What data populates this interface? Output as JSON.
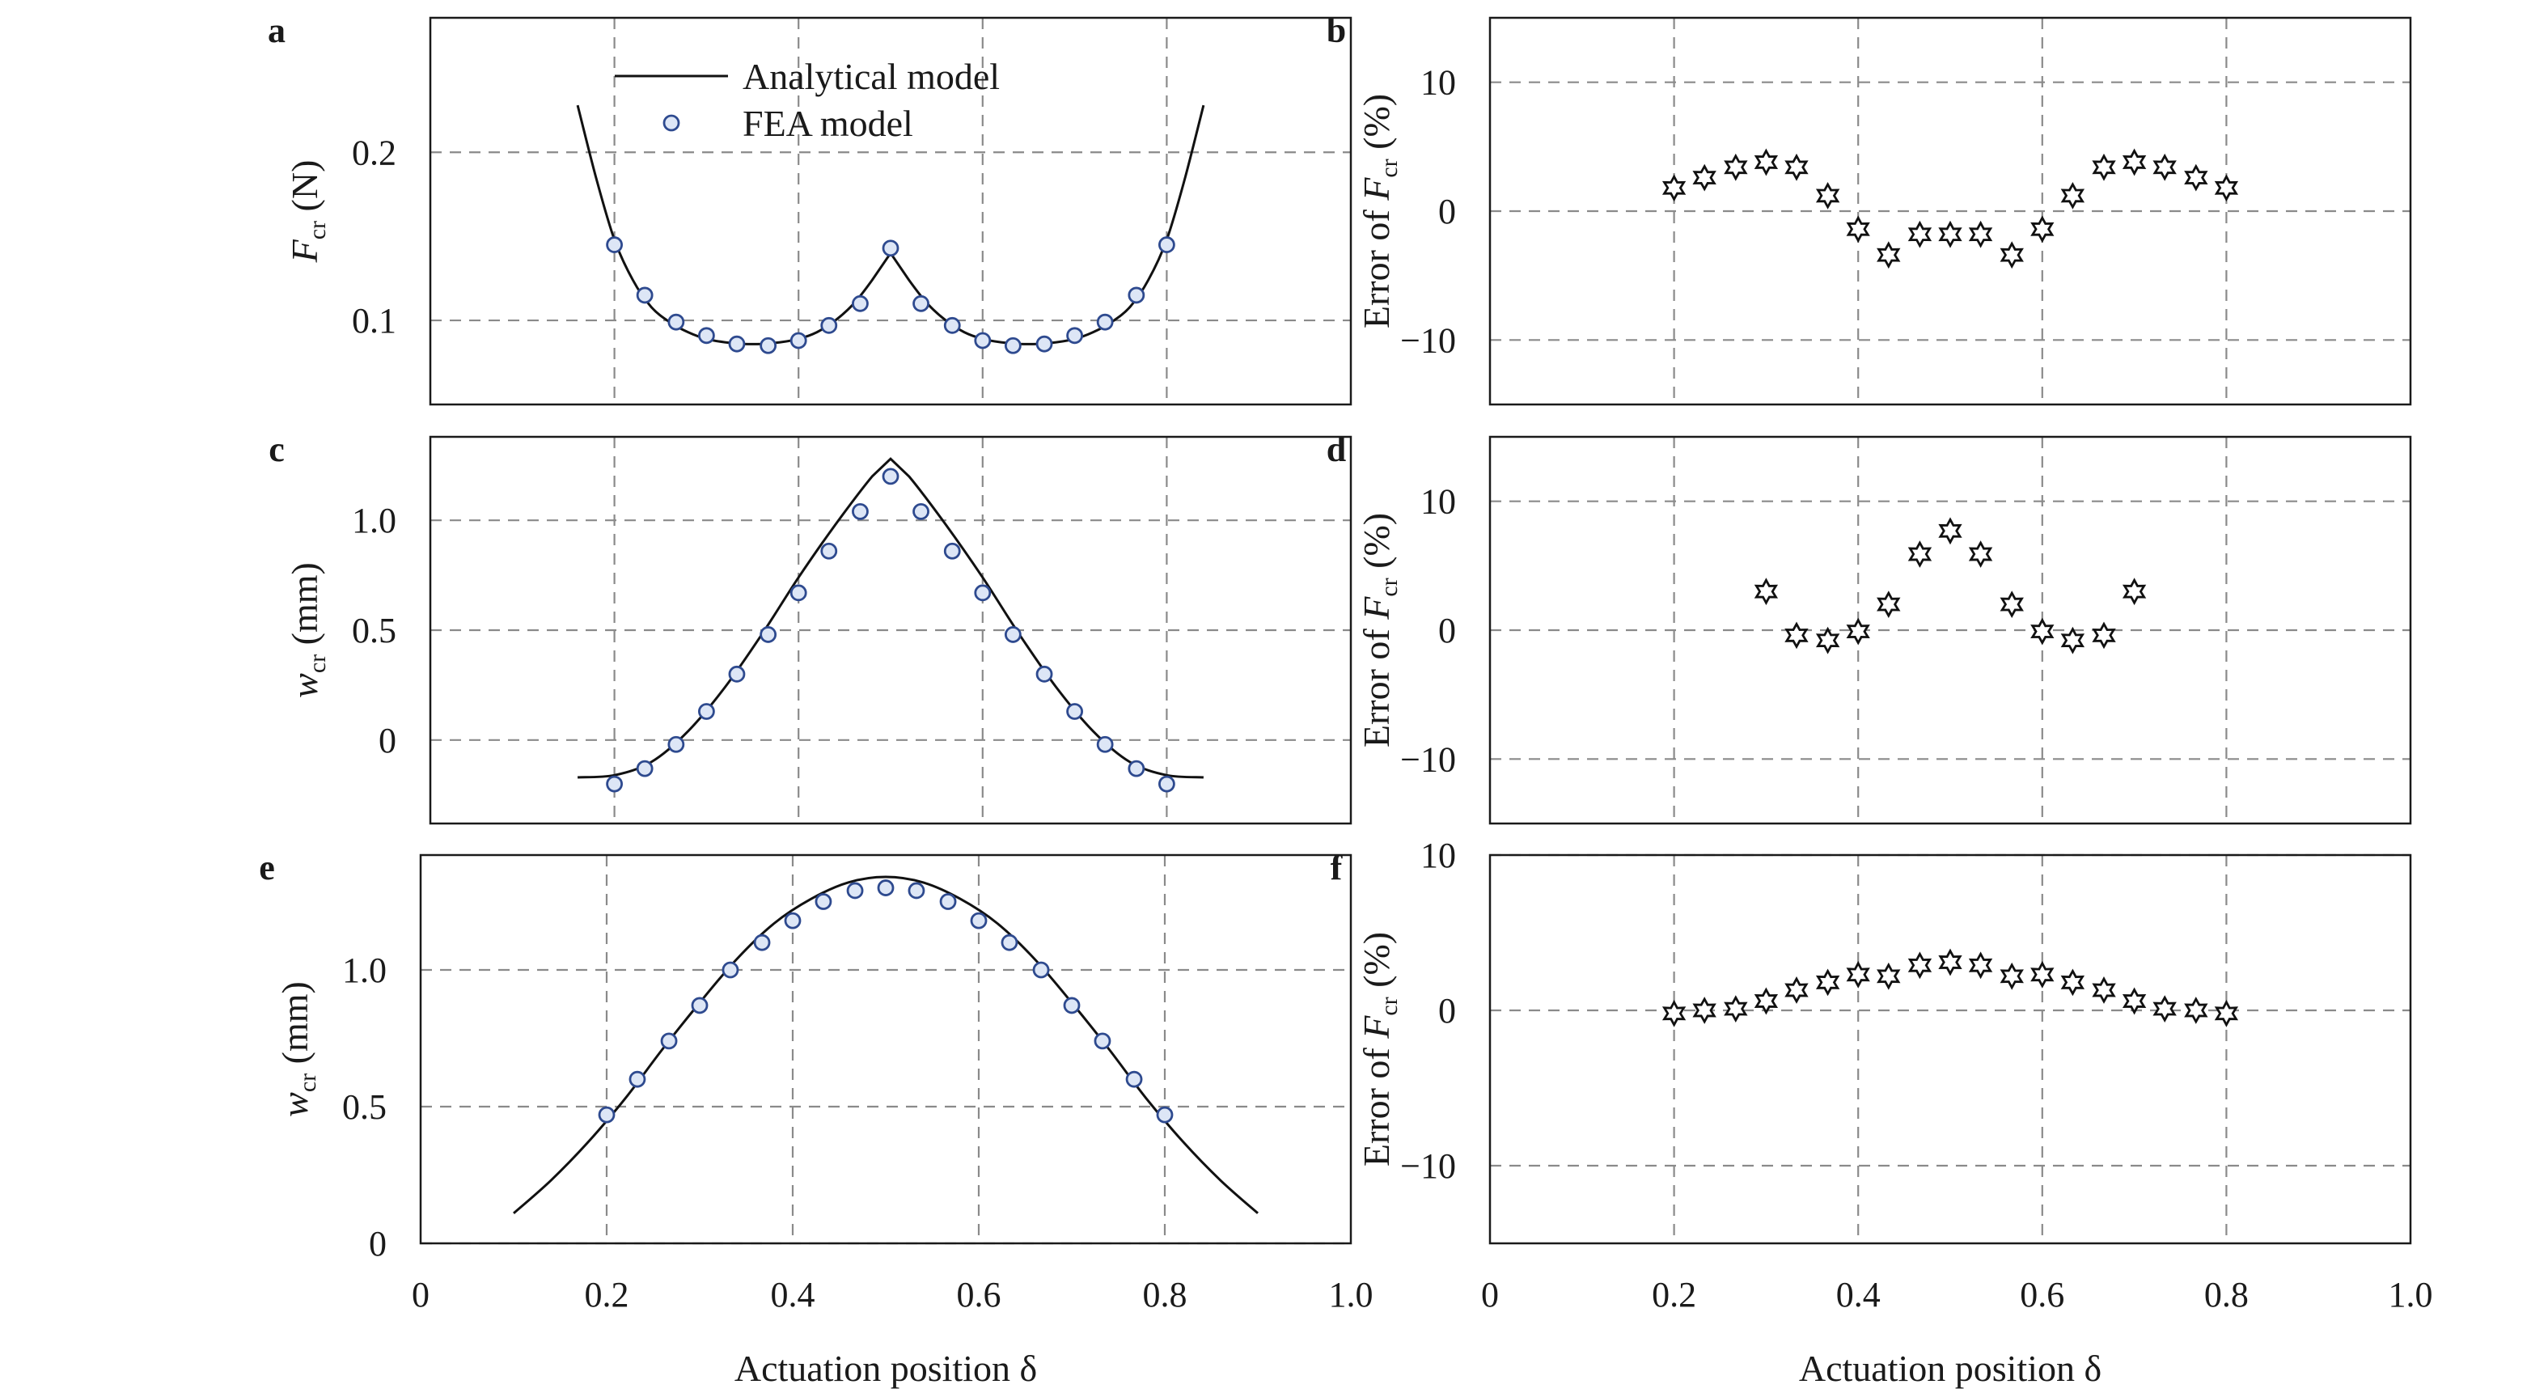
{
  "chart_data": [
    {
      "panel": "a",
      "type": "line",
      "xlim": [
        0,
        1.0
      ],
      "ylim": [
        0.05,
        0.28
      ],
      "xticks": [
        0.2,
        0.4,
        0.6,
        0.8
      ],
      "yticks": [
        0.1,
        0.2
      ],
      "ytick_labels": [
        "0.1",
        "0.2"
      ],
      "ylabel_main": "F",
      "ylabel_sub": "cr",
      "ylabel_unit": "(N)",
      "legend": {
        "position": "top-center",
        "line_label": "Analytical model",
        "marker_label": "FEA model"
      },
      "series": [
        {
          "kind": "line",
          "x": [
            0.16,
            0.18,
            0.2,
            0.22,
            0.24,
            0.26,
            0.28,
            0.3,
            0.32,
            0.34,
            0.36,
            0.38,
            0.4,
            0.42,
            0.44,
            0.46,
            0.48,
            0.5,
            0.52,
            0.54,
            0.56,
            0.58,
            0.6,
            0.62,
            0.64,
            0.66,
            0.68,
            0.7,
            0.72,
            0.74,
            0.76,
            0.78,
            0.8,
            0.82,
            0.84
          ],
          "y": [
            0.228,
            0.185,
            0.148,
            0.124,
            0.108,
            0.099,
            0.093,
            0.089,
            0.087,
            0.086,
            0.086,
            0.087,
            0.089,
            0.093,
            0.1,
            0.11,
            0.124,
            0.14,
            0.124,
            0.11,
            0.1,
            0.093,
            0.089,
            0.087,
            0.086,
            0.086,
            0.087,
            0.089,
            0.093,
            0.099,
            0.108,
            0.124,
            0.148,
            0.185,
            0.228
          ]
        },
        {
          "kind": "points",
          "x": [
            0.2,
            0.233,
            0.267,
            0.3,
            0.333,
            0.367,
            0.4,
            0.433,
            0.467,
            0.5,
            0.533,
            0.567,
            0.6,
            0.633,
            0.667,
            0.7,
            0.733,
            0.767,
            0.8
          ],
          "y": [
            0.145,
            0.115,
            0.099,
            0.091,
            0.086,
            0.085,
            0.088,
            0.097,
            0.11,
            0.143,
            0.11,
            0.097,
            0.088,
            0.085,
            0.086,
            0.091,
            0.099,
            0.115,
            0.145
          ]
        }
      ]
    },
    {
      "panel": "b",
      "type": "scatter",
      "xlim": [
        0,
        1.0
      ],
      "ylim": [
        -15,
        15
      ],
      "xticks": [
        0.2,
        0.4,
        0.6,
        0.8
      ],
      "yticks": [
        -10,
        0,
        10
      ],
      "ytick_labels": [
        "−10",
        "0",
        "10"
      ],
      "ylabel_prefix": "Error of ",
      "ylabel_main": "F",
      "ylabel_sub": "cr",
      "ylabel_unit": " (%)",
      "series": [
        {
          "kind": "stars",
          "x": [
            0.2,
            0.233,
            0.267,
            0.3,
            0.333,
            0.367,
            0.4,
            0.433,
            0.467,
            0.5,
            0.533,
            0.567,
            0.6,
            0.633,
            0.667,
            0.7,
            0.733,
            0.767,
            0.8
          ],
          "y": [
            1.8,
            2.6,
            3.4,
            3.8,
            3.4,
            1.2,
            -1.4,
            -3.4,
            -1.8,
            -1.8,
            -1.8,
            -3.4,
            -1.4,
            1.2,
            3.4,
            3.8,
            3.4,
            2.6,
            1.8
          ]
        }
      ]
    },
    {
      "panel": "c",
      "type": "line",
      "xlim": [
        0,
        1.0
      ],
      "ylim": [
        -0.38,
        1.38
      ],
      "xticks": [
        0.2,
        0.4,
        0.6,
        0.8
      ],
      "yticks": [
        0,
        0.5,
        1.0
      ],
      "ytick_labels": [
        "0",
        "0.5",
        "1.0"
      ],
      "ylabel_main": "w",
      "ylabel_sub": "cr",
      "ylabel_unit": "(mm)",
      "series": [
        {
          "kind": "line",
          "x": [
            0.16,
            0.2,
            0.24,
            0.28,
            0.32,
            0.36,
            0.4,
            0.44,
            0.48,
            0.5,
            0.52,
            0.56,
            0.6,
            0.64,
            0.68,
            0.72,
            0.76,
            0.8,
            0.84
          ],
          "y": [
            -0.17,
            -0.16,
            -0.1,
            0.04,
            0.24,
            0.48,
            0.74,
            0.98,
            1.2,
            1.28,
            1.2,
            0.98,
            0.74,
            0.48,
            0.24,
            0.04,
            -0.1,
            -0.16,
            -0.17
          ]
        },
        {
          "kind": "points",
          "x": [
            0.2,
            0.233,
            0.267,
            0.3,
            0.333,
            0.367,
            0.4,
            0.433,
            0.467,
            0.5,
            0.533,
            0.567,
            0.6,
            0.633,
            0.667,
            0.7,
            0.733,
            0.767,
            0.8
          ],
          "y": [
            -0.2,
            -0.13,
            -0.02,
            0.13,
            0.3,
            0.48,
            0.67,
            0.86,
            1.04,
            1.2,
            1.04,
            0.86,
            0.67,
            0.48,
            0.3,
            0.13,
            -0.02,
            -0.13,
            -0.2
          ]
        }
      ]
    },
    {
      "panel": "d",
      "type": "scatter",
      "xlim": [
        0,
        1.0
      ],
      "ylim": [
        -15,
        15
      ],
      "xticks": [
        0.2,
        0.4,
        0.6,
        0.8
      ],
      "yticks": [
        -10,
        0,
        10
      ],
      "ytick_labels": [
        "−10",
        "0",
        "10"
      ],
      "ylabel_prefix": "Error of ",
      "ylabel_main": "F",
      "ylabel_sub": "cr",
      "ylabel_unit": " (%)",
      "series": [
        {
          "kind": "stars",
          "x": [
            0.3,
            0.333,
            0.367,
            0.4,
            0.433,
            0.467,
            0.5,
            0.533,
            0.567,
            0.6,
            0.633,
            0.667,
            0.7
          ],
          "y": [
            3.0,
            -0.4,
            -0.8,
            -0.1,
            2.0,
            5.9,
            7.7,
            5.9,
            2.0,
            -0.1,
            -0.8,
            -0.4,
            3.0
          ]
        }
      ]
    },
    {
      "panel": "e",
      "type": "line",
      "xlim": [
        0,
        1.0
      ],
      "ylim": [
        0,
        1.42
      ],
      "xticks": [
        0,
        0.2,
        0.4,
        0.6,
        0.8,
        1.0
      ],
      "xtick_labels": [
        "0",
        "0.2",
        "0.4",
        "0.6",
        "0.8",
        "1.0"
      ],
      "yticks": [
        0,
        0.5,
        1.0
      ],
      "ytick_labels": [
        "0",
        "0.5",
        "1.0"
      ],
      "ylabel_main": "w",
      "ylabel_sub": "cr",
      "ylabel_unit": "(mm)",
      "xlabel": "Actuation position δ",
      "series": [
        {
          "kind": "line",
          "x": [
            0.1,
            0.14,
            0.18,
            0.22,
            0.26,
            0.3,
            0.34,
            0.38,
            0.42,
            0.46,
            0.5,
            0.54,
            0.58,
            0.62,
            0.66,
            0.7,
            0.74,
            0.78,
            0.82,
            0.86,
            0.9
          ],
          "y": [
            0.11,
            0.23,
            0.37,
            0.53,
            0.71,
            0.88,
            1.04,
            1.17,
            1.26,
            1.32,
            1.34,
            1.32,
            1.26,
            1.17,
            1.04,
            0.88,
            0.71,
            0.53,
            0.37,
            0.23,
            0.11
          ]
        },
        {
          "kind": "points",
          "x": [
            0.2,
            0.233,
            0.267,
            0.3,
            0.333,
            0.367,
            0.4,
            0.433,
            0.467,
            0.5,
            0.533,
            0.567,
            0.6,
            0.633,
            0.667,
            0.7,
            0.733,
            0.767,
            0.8
          ],
          "y": [
            0.47,
            0.6,
            0.74,
            0.87,
            1.0,
            1.1,
            1.18,
            1.25,
            1.29,
            1.3,
            1.29,
            1.25,
            1.18,
            1.1,
            1.0,
            0.87,
            0.74,
            0.6,
            0.47
          ]
        }
      ]
    },
    {
      "panel": "f",
      "type": "scatter",
      "xlim": [
        0,
        1.0
      ],
      "ylim": [
        -15,
        10
      ],
      "xticks": [
        0,
        0.2,
        0.4,
        0.6,
        0.8,
        1.0
      ],
      "xtick_labels": [
        "0",
        "0.2",
        "0.4",
        "0.6",
        "0.8",
        "1.0"
      ],
      "yticks": [
        -10,
        0,
        10
      ],
      "ytick_labels": [
        "−10",
        "0",
        "10"
      ],
      "ylabel_prefix": "Error of ",
      "ylabel_main": "F",
      "ylabel_sub": "cr",
      "ylabel_unit": " (%)",
      "xlabel": "Actuation position δ",
      "series": [
        {
          "kind": "stars",
          "x": [
            0.2,
            0.233,
            0.267,
            0.3,
            0.333,
            0.367,
            0.4,
            0.433,
            0.467,
            0.5,
            0.533,
            0.567,
            0.6,
            0.633,
            0.667,
            0.7,
            0.733,
            0.767,
            0.8
          ],
          "y": [
            -0.2,
            0.0,
            0.1,
            0.6,
            1.3,
            1.8,
            2.3,
            2.2,
            2.9,
            3.1,
            2.9,
            2.2,
            2.3,
            1.8,
            1.3,
            0.6,
            0.1,
            0.0,
            -0.2
          ]
        }
      ]
    }
  ]
}
